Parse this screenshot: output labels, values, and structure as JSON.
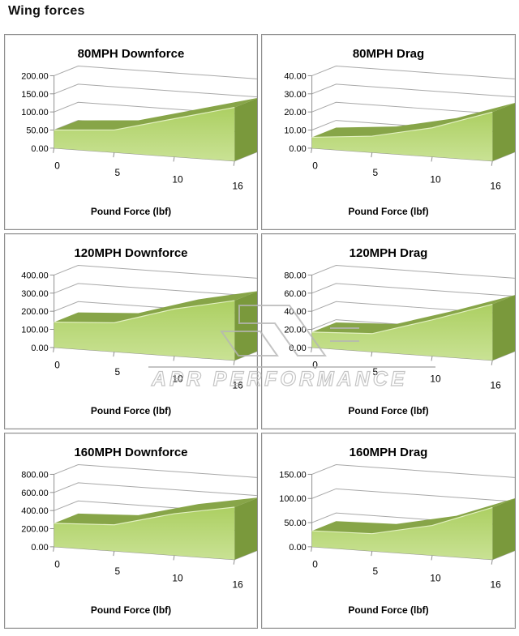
{
  "page_title": "Wing forces",
  "watermark": {
    "text": "APR PERFORMANCE"
  },
  "colors": {
    "area_fill_top": "#accf62",
    "area_fill_bottom": "#c9e294",
    "area_ribbon": "#87a548",
    "area_side": "#7a993c",
    "area_highlight": "#e2f0c0",
    "grid": "#a8a8a8",
    "watermark": "#b6b6b6"
  },
  "chart_data": [
    {
      "type": "area",
      "style": "3d-area",
      "title": "80MPH Downforce",
      "xlabel": "Pound Force (lbf)",
      "x": [
        0,
        5,
        10,
        16
      ],
      "values": [
        50,
        62,
        105,
        148
      ],
      "ylim": [
        0,
        200
      ],
      "y_ticks": [
        "0.00",
        "50.00",
        "100.00",
        "150.00",
        "200.00"
      ],
      "x_ticks": [
        "0",
        "5",
        "10",
        "16"
      ],
      "legend": "none",
      "grid": "on"
    },
    {
      "type": "area",
      "style": "3d-area",
      "title": "80MPH Drag",
      "xlabel": "Pound Force (lbf)",
      "x": [
        0,
        5,
        10,
        16
      ],
      "values": [
        6,
        9,
        16,
        27
      ],
      "ylim": [
        0,
        40
      ],
      "y_ticks": [
        "0.00",
        "10.00",
        "20.00",
        "30.00",
        "40.00"
      ],
      "x_ticks": [
        "0",
        "5",
        "10",
        "16"
      ],
      "legend": "none",
      "grid": "on"
    },
    {
      "type": "area",
      "style": "3d-area",
      "title": "120MPH Downforce",
      "xlabel": "Pound Force (lbf)",
      "x": [
        0,
        5,
        10,
        16
      ],
      "values": [
        140,
        160,
        260,
        330
      ],
      "ylim": [
        0,
        400
      ],
      "y_ticks": [
        "0.00",
        "100.00",
        "200.00",
        "300.00",
        "400.00"
      ],
      "x_ticks": [
        "0",
        "5",
        "10",
        "16"
      ],
      "legend": "none",
      "grid": "on"
    },
    {
      "type": "area",
      "style": "3d-area",
      "title": "120MPH Drag",
      "xlabel": "Pound Force (lbf)",
      "x": [
        0,
        5,
        10,
        16
      ],
      "values": [
        17,
        20,
        40,
        62
      ],
      "ylim": [
        0,
        80
      ],
      "y_ticks": [
        "0.00",
        "20.00",
        "40.00",
        "60.00",
        "80.00"
      ],
      "x_ticks": [
        "0",
        "5",
        "10",
        "16"
      ],
      "legend": "none",
      "grid": "on"
    },
    {
      "type": "area",
      "style": "3d-area",
      "title": "160MPH Downforce",
      "xlabel": "Pound Force (lbf)",
      "x": [
        0,
        5,
        10,
        16
      ],
      "values": [
        260,
        290,
        460,
        580
      ],
      "ylim": [
        0,
        800
      ],
      "y_ticks": [
        "0.00",
        "200.00",
        "400.00",
        "600.00",
        "800.00"
      ],
      "x_ticks": [
        "0",
        "5",
        "10",
        "16"
      ],
      "legend": "none",
      "grid": "on"
    },
    {
      "type": "area",
      "style": "3d-area",
      "title": "160MPH Drag",
      "xlabel": "Pound Force (lbf)",
      "x": [
        0,
        5,
        10,
        16
      ],
      "values": [
        33,
        36,
        62,
        108
      ],
      "ylim": [
        0,
        150
      ],
      "y_ticks": [
        "0.00",
        "50.00",
        "100.00",
        "150.00"
      ],
      "x_ticks": [
        "0",
        "5",
        "10",
        "16"
      ],
      "legend": "none",
      "grid": "on"
    }
  ]
}
